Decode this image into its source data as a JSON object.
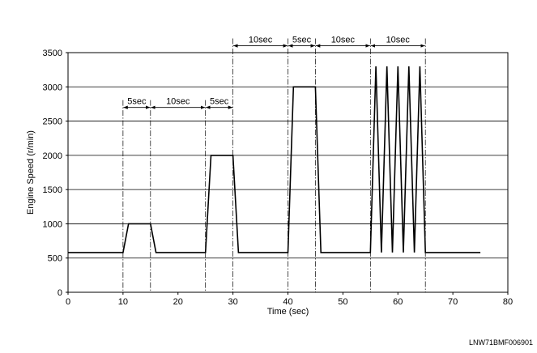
{
  "chart_data": {
    "type": "line",
    "title": "",
    "xlabel": "Time (sec)",
    "ylabel": "Engine Speed (r/min)",
    "xlim": [
      0,
      80
    ],
    "ylim": [
      0,
      3500
    ],
    "xticks": [
      0,
      10,
      20,
      30,
      40,
      50,
      60,
      70,
      80
    ],
    "yticks": [
      0,
      500,
      1000,
      1500,
      2000,
      2500,
      3000,
      3500
    ],
    "grid": "horizontal",
    "series": [
      {
        "x": [
          0,
          10,
          11,
          15,
          16,
          25,
          26,
          30,
          31,
          40,
          41,
          45,
          46,
          55,
          56,
          57,
          58,
          59,
          60,
          61,
          62,
          63,
          64,
          65,
          75
        ],
        "y": [
          580,
          580,
          1000,
          1000,
          580,
          580,
          2000,
          2000,
          580,
          580,
          3000,
          3000,
          580,
          580,
          3300,
          580,
          3300,
          580,
          3300,
          580,
          3300,
          580,
          3300,
          580,
          580
        ]
      }
    ],
    "markers": [
      10,
      15,
      25,
      30,
      40,
      45,
      55,
      65
    ],
    "annotations": [
      {
        "from": 10,
        "to": 15,
        "label": "5sec",
        "level": 2700
      },
      {
        "from": 15,
        "to": 25,
        "label": "10sec",
        "level": 2700
      },
      {
        "from": 25,
        "to": 30,
        "label": "5sec",
        "level": 2700
      },
      {
        "from": 30,
        "to": 40,
        "label": "10sec",
        "level": 3600
      },
      {
        "from": 40,
        "to": 45,
        "label": "5sec",
        "level": 3600
      },
      {
        "from": 45,
        "to": 55,
        "label": "10sec",
        "level": 3600
      },
      {
        "from": 55,
        "to": 65,
        "label": "10sec",
        "level": 3600
      }
    ]
  },
  "figure_code": "LNW71BMF006901"
}
